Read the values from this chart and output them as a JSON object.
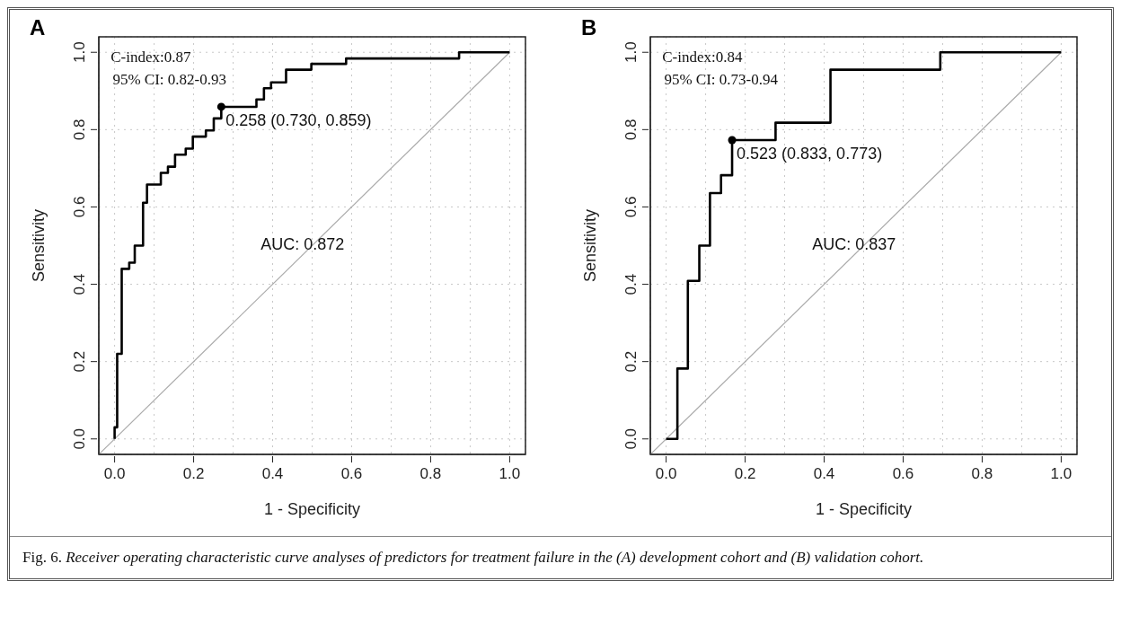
{
  "chart_data": [
    {
      "type": "step",
      "title": "A",
      "xlabel": "1 - Specificity",
      "ylabel": "Sensitivity",
      "xlim": [
        -0.04,
        1.04
      ],
      "ylim": [
        -0.04,
        1.04
      ],
      "xticks": [
        {
          "value": 0,
          "label": "0.0"
        },
        {
          "value": 0.1,
          "label": null
        },
        {
          "value": 0.2,
          "label": "0.2"
        },
        {
          "value": 0.3,
          "label": null
        },
        {
          "value": 0.4,
          "label": "0.4"
        },
        {
          "value": 0.5,
          "label": null
        },
        {
          "value": 0.6,
          "label": "0.6"
        },
        {
          "value": 0.7,
          "label": null
        },
        {
          "value": 0.8,
          "label": "0.8"
        },
        {
          "value": 0.9,
          "label": null
        },
        {
          "value": 1,
          "label": "1.0"
        }
      ],
      "yticks": [
        {
          "value": 0,
          "label": "0.0"
        },
        {
          "value": 0.2,
          "label": "0.2"
        },
        {
          "value": 0.4,
          "label": "0.4"
        },
        {
          "value": 0.6,
          "label": "0.6"
        },
        {
          "value": 0.8,
          "label": "0.8"
        },
        {
          "value": 1,
          "label": "1.0"
        }
      ],
      "grid": true,
      "annotations": [
        "C-index:0.87",
        "95% CI: 0.82-0.93",
        "AUC: 0.872",
        {
          "text": "0.258 (0.730, 0.859)",
          "x": 0.27,
          "y": 0.859
        }
      ],
      "series": [
        {
          "type": "line",
          "color": "#aaaaaa",
          "x": [
            -0.04,
            1
          ],
          "values": [
            -0.04,
            1
          ]
        },
        {
          "type": "step",
          "color": "#000000",
          "x": [
            0,
            0,
            0.0065,
            0.018,
            0.037,
            0.051,
            0.072,
            0.082,
            0.117,
            0.135,
            0.153,
            0.18,
            0.198,
            0.231,
            0.251,
            0.27,
            0.359,
            0.378,
            0.396,
            0.434,
            0.498,
            0.586,
            0.872,
            1
          ],
          "values": [
            0,
            0.03,
            0.22,
            0.44,
            0.456,
            0.5,
            0.611,
            0.658,
            0.688,
            0.704,
            0.735,
            0.751,
            0.782,
            0.798,
            0.829,
            0.859,
            0.878,
            0.907,
            0.922,
            0.955,
            0.97,
            0.984,
            1,
            1
          ]
        },
        {
          "type": "scatter",
          "marker": "circle",
          "color": "#000000",
          "x": [
            0.27
          ],
          "values": [
            0.859
          ]
        }
      ]
    },
    {
      "type": "step",
      "title": "B",
      "xlabel": "1 - Specificity",
      "ylabel": "Sensitivity",
      "xlim": [
        -0.04,
        1.04
      ],
      "ylim": [
        -0.04,
        1.04
      ],
      "xticks": [
        {
          "value": 0,
          "label": "0.0"
        },
        {
          "value": 0.1,
          "label": null
        },
        {
          "value": 0.2,
          "label": "0.2"
        },
        {
          "value": 0.3,
          "label": null
        },
        {
          "value": 0.4,
          "label": "0.4"
        },
        {
          "value": 0.5,
          "label": null
        },
        {
          "value": 0.6,
          "label": "0.6"
        },
        {
          "value": 0.7,
          "label": null
        },
        {
          "value": 0.8,
          "label": "0.8"
        },
        {
          "value": 0.9,
          "label": null
        },
        {
          "value": 1,
          "label": "1.0"
        }
      ],
      "yticks": [
        {
          "value": 0,
          "label": "0.0"
        },
        {
          "value": 0.2,
          "label": "0.2"
        },
        {
          "value": 0.4,
          "label": "0.4"
        },
        {
          "value": 0.6,
          "label": "0.6"
        },
        {
          "value": 0.8,
          "label": "0.8"
        },
        {
          "value": 1,
          "label": "1.0"
        }
      ],
      "grid": true,
      "annotations": [
        "C-index:0.84",
        "95% CI: 0.73-0.94",
        "AUC: 0.837",
        {
          "text": "0.523 (0.833, 0.773)",
          "x": 0.167,
          "y": 0.773
        }
      ],
      "series": [
        {
          "type": "line",
          "color": "#aaaaaa",
          "x": [
            -0.04,
            1
          ],
          "values": [
            -0.04,
            1
          ]
        },
        {
          "type": "step",
          "color": "#000000",
          "x": [
            0,
            0.0285,
            0.055,
            0.084,
            0.111,
            0.139,
            0.167,
            0.277,
            0.416,
            0.694,
            1
          ],
          "values": [
            0,
            0.182,
            0.409,
            0.5,
            0.636,
            0.682,
            0.773,
            0.818,
            0.955,
            1,
            1
          ]
        },
        {
          "type": "scatter",
          "marker": "circle",
          "color": "#000000",
          "x": [
            0.167
          ],
          "values": [
            0.773
          ]
        }
      ]
    },
    {
      "type": "other",
      "annotations": [
        "Fig. 6.",
        "Receiver operating characteristic curve analyses of predictors for treatment failure in the (A) development cohort and (B) validation cohort."
      ]
    }
  ]
}
